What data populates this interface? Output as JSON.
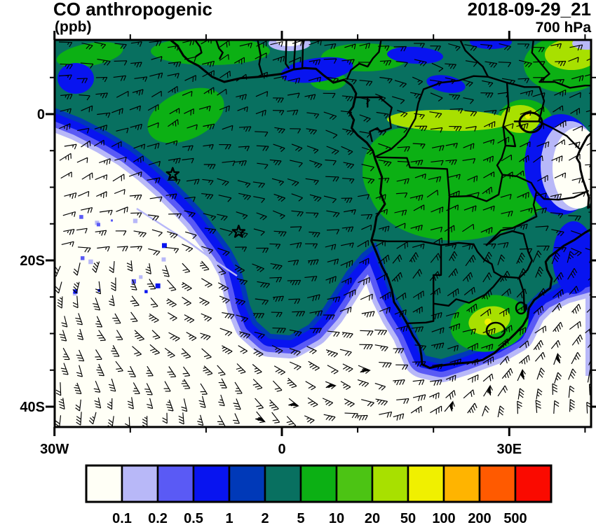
{
  "header": {
    "title": "CO anthropogenic",
    "units": "(ppb)",
    "datetime": "2018-09-29_21",
    "level": "700 hPa"
  },
  "axes": {
    "y_ticks": [
      {
        "label": "0",
        "lat": 0
      },
      {
        "label": "20S",
        "lat": -20
      },
      {
        "label": "40S",
        "lat": -40
      }
    ],
    "y_minor_step_deg": 5,
    "x_ticks": [
      {
        "label": "30W",
        "lon": -30
      },
      {
        "label": "0",
        "lon": 0
      },
      {
        "label": "30E",
        "lon": 30
      }
    ],
    "x_minor_step_deg": 10,
    "lon_range": [
      -30,
      41
    ],
    "lat_range": [
      -42.8,
      10.1
    ]
  },
  "colorbar": {
    "labels": [
      "0.1",
      "0.2",
      "0.5",
      "1",
      "2",
      "5",
      "10",
      "20",
      "50",
      "100",
      "200",
      "500"
    ],
    "colors": [
      "#FFFFF6",
      "#B8B8F8",
      "#5A5AF5",
      "#0814F0",
      "#0039B8",
      "#087060",
      "#0CB014",
      "#4CC414",
      "#A8E000",
      "#F0F000",
      "#FFB400",
      "#FF5A00",
      "#FA0A00"
    ]
  },
  "markers": {
    "stars_lonlat": [
      [
        -14.4,
        -8.2
      ],
      [
        -5.7,
        -16.1
      ]
    ]
  },
  "chart_data": {
    "type": "heatmap",
    "subtype": "filled_contour_map_with_wind_barbs",
    "title": "CO anthropogenic",
    "units": "ppb",
    "valid_datetime": "2018-09-29_21",
    "pressure_level_hPa": 700,
    "lon_range_deg": [
      -30,
      41
    ],
    "lat_range_deg": [
      -43,
      10
    ],
    "x_tick_labels": [
      "30W",
      "0",
      "30E"
    ],
    "y_tick_labels": [
      "0",
      "20S",
      "40S"
    ],
    "contour_levels_ppb": [
      0.1,
      0.2,
      0.5,
      1,
      2,
      5,
      10,
      20,
      50,
      100,
      200,
      500
    ],
    "palette_hex": [
      "#FFFFF6",
      "#B8B8F8",
      "#5A5AF5",
      "#0814F0",
      "#0039B8",
      "#087060",
      "#0CB014",
      "#4CC414",
      "#A8E000",
      "#F0F000",
      "#FFB400",
      "#FF5A00",
      "#FA0A00"
    ],
    "legend_position": "bottom",
    "overlays": [
      "wind_barbs",
      "coastlines",
      "country_borders",
      "star_markers"
    ],
    "star_markers_lonlat": [
      [
        -14.4,
        -8.2
      ],
      [
        -5.7,
        -16.1
      ]
    ],
    "regions": [
      {
        "area": "Gulf of Guinea and central Atlantic biomass plume",
        "approx_value_ppb": "2-5"
      },
      {
        "area": "Congo Basin / Angola / Zambia interior",
        "approx_value_ppb": "5-20"
      },
      {
        "area": "Equatorial band 15E-30E",
        "approx_value_ppb": "10-20"
      },
      {
        "area": "Lake Victoria region",
        "approx_value_ppb": "10-50"
      },
      {
        "area": "Northeast corner highlands",
        "approx_value_ppb": "5-20"
      },
      {
        "area": "South Africa Highveld",
        "approx_value_ppb": "5-50"
      },
      {
        "area": "Southwest Atlantic south of plume",
        "approx_value_ppb": "<0.1-0.5"
      },
      {
        "area": "East African coast (Tanzania/Kenya)",
        "approx_value_ppb": "<0.1-0.5"
      },
      {
        "area": "Southern Ocean southeast of South Africa",
        "approx_value_ppb": "<0.1"
      }
    ]
  }
}
